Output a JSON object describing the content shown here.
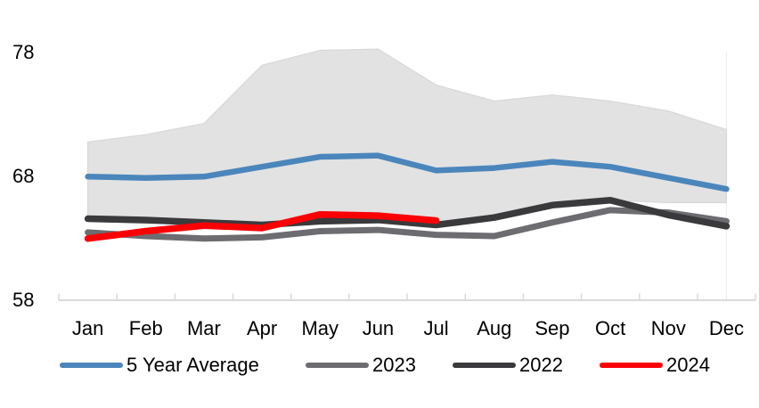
{
  "chart_data": {
    "type": "line",
    "title": "",
    "categories": [
      "Jan",
      "Feb",
      "Mar",
      "Apr",
      "May",
      "Jun",
      "Jul",
      "Aug",
      "Sep",
      "Oct",
      "Nov",
      "Dec"
    ],
    "y_axis": {
      "ticks": [
        "78",
        "68",
        "58"
      ],
      "tick_values": [
        78,
        68,
        58
      ],
      "min": 58,
      "max": 78
    },
    "x_axis": {
      "label": "",
      "gridlines": false
    },
    "band": {
      "name": "5-year range",
      "upper": [
        70.8,
        71.4,
        72.3,
        77.0,
        78.2,
        78.3,
        75.4,
        74.1,
        74.6,
        74.1,
        73.3,
        71.8
      ],
      "lower": [
        64.4,
        64.2,
        64.3,
        64.0,
        64.9,
        64.8,
        64.2,
        64.7,
        65.7,
        66.1,
        65.9,
        65.9
      ],
      "fill_color": "#e2e2e2",
      "edge_color": "#d8d8d8"
    },
    "series": [
      {
        "name": "5 Year Average",
        "color": "#4a86bb",
        "stroke_width": 6.5,
        "values": [
          68.0,
          67.9,
          68.0,
          68.8,
          69.6,
          69.7,
          68.5,
          68.7,
          69.2,
          68.8,
          67.9,
          67.0
        ]
      },
      {
        "name": "2023",
        "color": "#6d6d71",
        "stroke_width": 7,
        "values": [
          63.5,
          63.2,
          63.0,
          63.1,
          63.6,
          63.7,
          63.3,
          63.2,
          64.3,
          65.3,
          65.1,
          64.4
        ]
      },
      {
        "name": "2022",
        "color": "#3a3a3c",
        "stroke_width": 7.5,
        "values": [
          64.6,
          64.5,
          64.3,
          64.1,
          64.4,
          64.5,
          64.1,
          64.7,
          65.7,
          66.1,
          64.9,
          64.0
        ]
      },
      {
        "name": "2024",
        "color": "#fa0005",
        "stroke_width": 7.5,
        "values": [
          63.0,
          63.6,
          64.05,
          63.85,
          64.95,
          64.85,
          64.45,
          null,
          null,
          null,
          null,
          null
        ]
      }
    ],
    "legend_position": "bottom",
    "axis_color": "#d9d9d9"
  }
}
